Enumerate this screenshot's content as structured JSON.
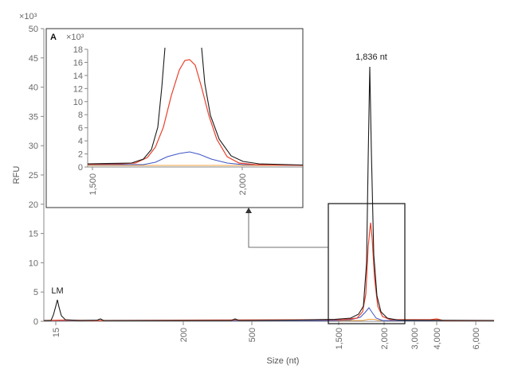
{
  "chart_data": {
    "type": "line",
    "ylabel": "RFU",
    "xlabel": "Size (nt)",
    "y_multiplier": "×10³",
    "ylim": [
      0,
      50
    ],
    "y_ticks": [
      "0",
      "5",
      "10",
      "15",
      "20",
      "25",
      "30",
      "35",
      "40",
      "45",
      "50"
    ],
    "x_ticks": [
      {
        "value": 15,
        "label": "15"
      },
      {
        "value": 200,
        "label": "200"
      },
      {
        "value": 500,
        "label": "500"
      },
      {
        "value": 1500,
        "label": "1,500"
      },
      {
        "value": 2000,
        "label": "2,000"
      },
      {
        "value": 3000,
        "label": "3,000"
      },
      {
        "value": 4000,
        "label": "4,000"
      },
      {
        "value": 6000,
        "label": "6,000"
      }
    ],
    "grid": false,
    "series_colors": {
      "black": "#1a1a1a",
      "red": "#e8402a",
      "blue": "#3d55c4",
      "orange": "#f0a040"
    },
    "series": [
      {
        "color": "black",
        "peak_x": 1836,
        "peak_y": 43.5,
        "marker_x": 15,
        "marker_y": 3.5
      },
      {
        "color": "red",
        "peak_x": 1836,
        "peak_y": 16.7
      },
      {
        "color": "blue",
        "peak_x": 1836,
        "peak_y": 2.3
      },
      {
        "color": "orange",
        "peak_x": 1836,
        "peak_y": 0.3
      }
    ],
    "annotations": [
      {
        "text": "1,836 nt",
        "x": 1836
      },
      {
        "text": "LM",
        "x": 15
      }
    ],
    "inset": {
      "label": "A",
      "y_multiplier": "×10³",
      "ylim": [
        0,
        18
      ],
      "y_ticks": [
        "0",
        "2",
        "4",
        "6",
        "8",
        "10",
        "12",
        "14",
        "16",
        "18"
      ],
      "x_ticks": [
        {
          "value": 1500,
          "label": "1,500"
        },
        {
          "value": 2000,
          "label": "2,000"
        }
      ]
    }
  }
}
